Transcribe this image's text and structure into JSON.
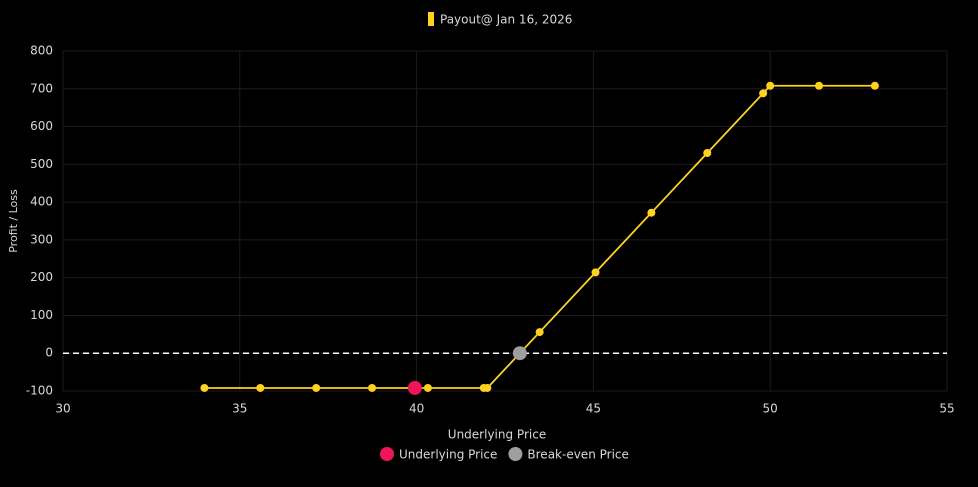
{
  "chart_data": {
    "type": "line",
    "x": [
      34,
      35.58,
      37.16,
      38.74,
      40.32,
      41.9,
      42,
      43.48,
      45.06,
      46.64,
      48.22,
      49.8,
      50,
      51.38,
      52.96
    ],
    "series": [
      {
        "name": "Payout@ Jan 16, 2026",
        "color": "#ffd21f",
        "values": [
          -92,
          -92,
          -92,
          -92,
          -92,
          -92,
          -92,
          56,
          214,
          372,
          530,
          688,
          708,
          708,
          708
        ]
      }
    ],
    "points": [
      {
        "name": "Underlying Price",
        "color": "#f0145a",
        "x": 39.95,
        "y": -92
      },
      {
        "name": "Break-even Price",
        "color": "#9e9e9e",
        "x": 42.92,
        "y": 0
      }
    ],
    "xlabel": "Underlying Price",
    "ylabel": "Profit / Loss",
    "xlim": [
      30,
      55
    ],
    "xticks": [
      30,
      35,
      40,
      45,
      50,
      55
    ],
    "ylim": [
      -100,
      800
    ],
    "yticks": [
      -100,
      0,
      100,
      200,
      300,
      400,
      500,
      600,
      700,
      800
    ],
    "grid": true,
    "zero_line": true
  }
}
